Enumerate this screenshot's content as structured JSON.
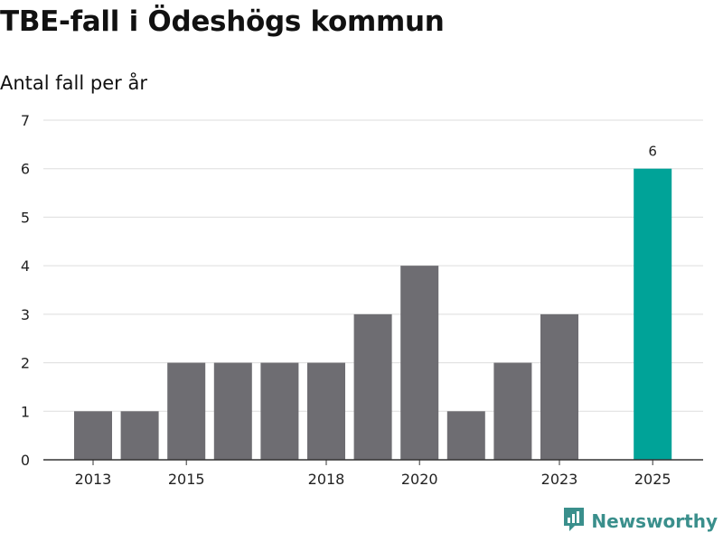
{
  "colors": {
    "bar_default": "#6e6d72",
    "bar_highlight": "#00a398",
    "grid": "#dddddd",
    "axis": "#333333",
    "brand": "#3a8f8c"
  },
  "brand": {
    "name": "Newsworthy",
    "icon": "newsworthy-logo-icon"
  },
  "chart_data": {
    "type": "bar",
    "title": "TBE-fall i Ödeshögs kommun",
    "subtitle": "Antal fall per år",
    "xlabel": "",
    "ylabel": "Antal fall per år",
    "categories": [
      "2013",
      "2014",
      "2015",
      "2016",
      "2017",
      "2018",
      "2019",
      "2020",
      "2021",
      "2022",
      "2023",
      "2024",
      "2025"
    ],
    "values": [
      1,
      1,
      2,
      2,
      2,
      2,
      3,
      4,
      1,
      2,
      3,
      0,
      6
    ],
    "x_tick_labels": [
      "2013",
      "2015",
      "2018",
      "2020",
      "2023",
      "2025"
    ],
    "y_ticks": [
      0,
      1,
      2,
      3,
      4,
      5,
      6,
      7
    ],
    "ylim": [
      0,
      7
    ],
    "grid": true,
    "highlight_category": "2025",
    "data_labels": [
      {
        "category": "2025",
        "text": "6"
      }
    ]
  }
}
